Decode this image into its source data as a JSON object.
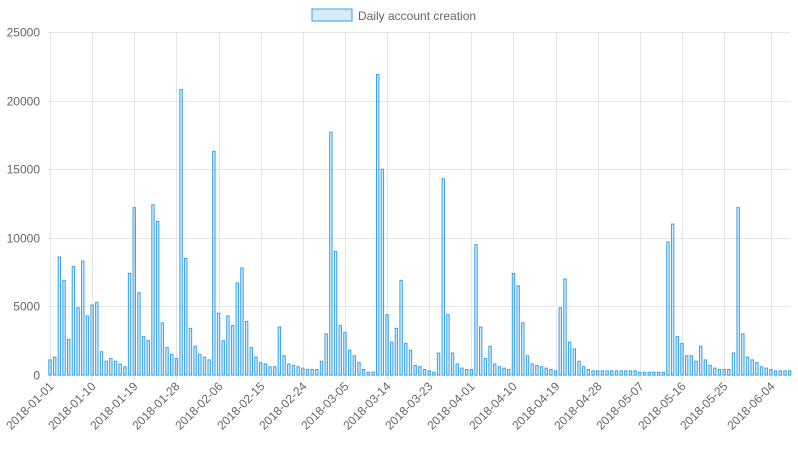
{
  "chart_data": {
    "type": "bar",
    "legend": {
      "label": "Daily account creation",
      "position": "top-center"
    },
    "colors": {
      "bar_fill": "rgba(54,162,235,0.2)",
      "bar_border": "#36a2eb",
      "grid": "#e5e5e5",
      "text": "#666666"
    },
    "ylim": [
      0,
      25000
    ],
    "yticks": [
      "0",
      "5000",
      "10000",
      "15000",
      "20000",
      "25000"
    ],
    "grid": true,
    "start_date": "2018-01-01",
    "xtick_labels": [
      "2018-01-01",
      "2018-01-10",
      "2018-01-19",
      "2018-01-28",
      "2018-02-06",
      "2018-02-15",
      "2018-02-24",
      "2018-03-05",
      "2018-03-14",
      "2018-03-23",
      "2018-04-01",
      "2018-04-10",
      "2018-04-19",
      "2018-04-28",
      "2018-05-07",
      "2018-05-16",
      "2018-05-25",
      "2018-06-04"
    ],
    "values": [
      1100,
      1300,
      8600,
      6900,
      2600,
      7900,
      4900,
      8300,
      4300,
      5100,
      5300,
      1700,
      1000,
      1200,
      1000,
      800,
      600,
      7400,
      12200,
      6000,
      2800,
      2500,
      12400,
      11200,
      3800,
      2000,
      1500,
      1200,
      20800,
      8500,
      3400,
      2100,
      1500,
      1300,
      1100,
      16300,
      4500,
      2500,
      4300,
      3600,
      6700,
      7800,
      3900,
      2000,
      1300,
      900,
      800,
      600,
      600,
      3500,
      1400,
      800,
      700,
      600,
      500,
      400,
      400,
      400,
      1000,
      3000,
      17700,
      9000,
      3600,
      3100,
      1800,
      1400,
      900,
      400,
      200,
      200,
      21900,
      15000,
      4400,
      2400,
      3400,
      6900,
      2300,
      1800,
      700,
      600,
      400,
      300,
      200,
      1600,
      14300,
      4400,
      1600,
      800,
      500,
      400,
      400,
      9500,
      3500,
      1200,
      2100,
      800,
      600,
      500,
      400,
      7400,
      6500,
      3800,
      1400,
      800,
      700,
      600,
      500,
      400,
      300,
      4900,
      7000,
      2400,
      1900,
      1000,
      600,
      400,
      300,
      300,
      300,
      300,
      300,
      300,
      300,
      300,
      300,
      300,
      200,
      200,
      200,
      200,
      200,
      200,
      9700,
      11000,
      2800,
      2300,
      1400,
      1400,
      1000,
      2100,
      1100,
      700,
      500,
      400,
      400,
      400,
      1600,
      12200,
      3000,
      1300,
      1100,
      900,
      600,
      500,
      400,
      300,
      300,
      300,
      300
    ]
  }
}
